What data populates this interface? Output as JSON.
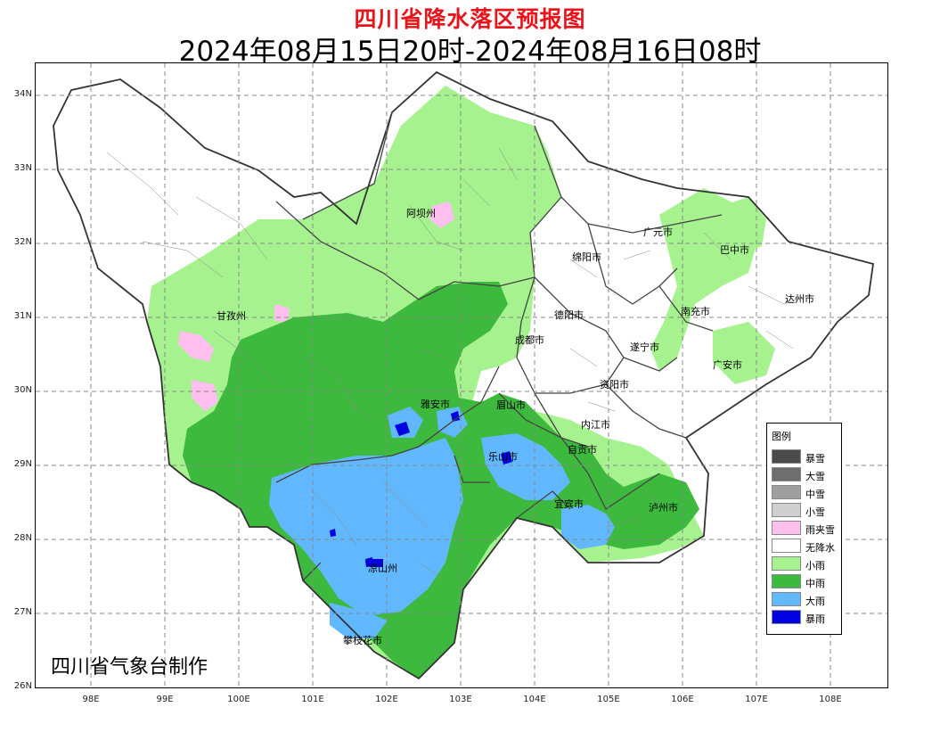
{
  "title": "四川省降水落区预报图",
  "subtitle": "2024年08月15日20时-2024年08月16日08时",
  "credit": "四川省气象台制作",
  "y_axis": [
    "34N",
    "33N",
    "32N",
    "31N",
    "30N",
    "29N",
    "28N",
    "27N",
    "26N"
  ],
  "x_axis": [
    "98E",
    "99E",
    "100E",
    "101E",
    "102E",
    "103E",
    "104E",
    "105E",
    "106E",
    "107E",
    "108E"
  ],
  "cities": [
    "阿坝州",
    "广元市",
    "巴中市",
    "绵阳市",
    "达州市",
    "甘孜州",
    "德阳市",
    "南充市",
    "成都市",
    "遂宁市",
    "广安市",
    "资阳市",
    "雅安市",
    "眉山市",
    "内江市",
    "自贡市",
    "乐山市",
    "宜宾市",
    "泸州市",
    "凉山州",
    "攀枝花市"
  ],
  "legend": {
    "title": "图例",
    "items": [
      {
        "label": "暴雪",
        "color": "#4a4a4a"
      },
      {
        "label": "大雪",
        "color": "#6e6e6e"
      },
      {
        "label": "中雪",
        "color": "#a0a0a0"
      },
      {
        "label": "小雪",
        "color": "#cfcfcf"
      },
      {
        "label": "雨夹雪",
        "color": "#ffbfef"
      },
      {
        "label": "无降水",
        "color": "#ffffff"
      },
      {
        "label": "小雨",
        "color": "#a6f28f"
      },
      {
        "label": "中雨",
        "color": "#3dba3d"
      },
      {
        "label": "大雨",
        "color": "#61b8ff"
      },
      {
        "label": "暴雨",
        "color": "#0000e1"
      }
    ]
  }
}
